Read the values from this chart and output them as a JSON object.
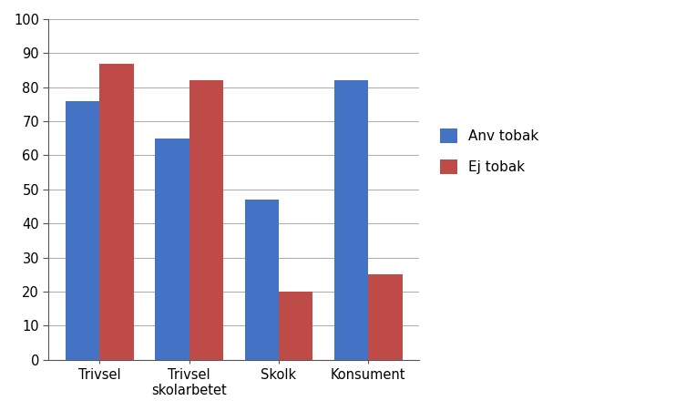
{
  "categories": [
    "Trivsel",
    "Trivsel\nskolarbetet",
    "Skolk",
    "Konsument"
  ],
  "anv_tobak": [
    76,
    65,
    47,
    82
  ],
  "ej_tobak": [
    87,
    82,
    20,
    25
  ],
  "anv_color": "#4472C4",
  "ej_color": "#BE4B48",
  "legend_labels": [
    "Anv tobak",
    "Ej tobak"
  ],
  "ylim": [
    0,
    100
  ],
  "yticks": [
    0,
    10,
    20,
    30,
    40,
    50,
    60,
    70,
    80,
    90,
    100
  ],
  "bar_width": 0.38,
  "background_color": "#ffffff",
  "grid_color": "#aaaaaa",
  "tick_color": "#555555"
}
